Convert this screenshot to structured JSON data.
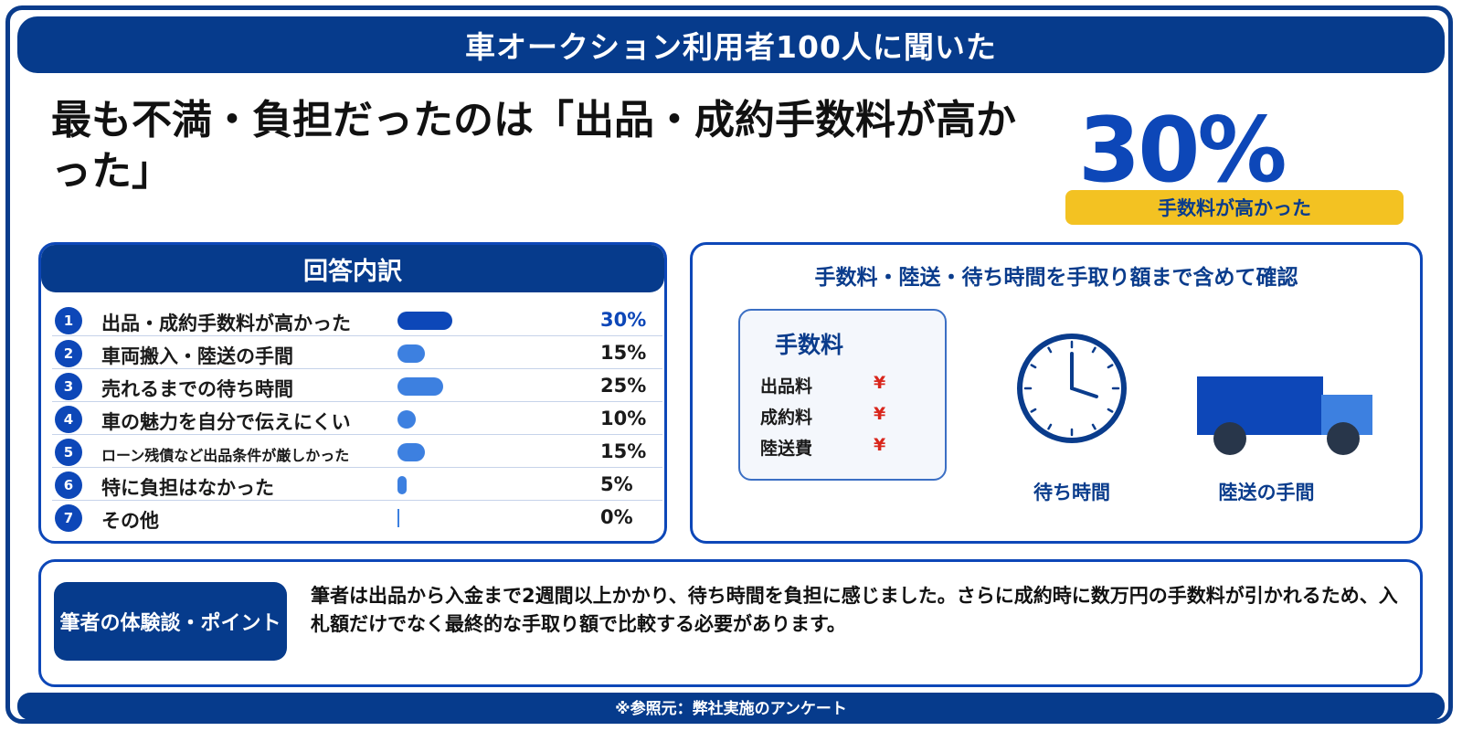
{
  "banner": "車オークション利用者100人に聞いた",
  "headline": "最も不満・負担だったのは「出品・成約手数料が高かった」",
  "hero": {
    "value": "30%",
    "label": "手数料が高かった"
  },
  "breakdown": {
    "title": "回答内訳"
  },
  "chart_data": {
    "type": "bar",
    "title": "回答内訳",
    "categories": [
      "出品・成約手数料が高かった",
      "車両搬入・陸送の手間",
      "売れるまでの待ち時間",
      "車の魅力を自分で伝えにくい",
      "ローン残債など出品条件が厳しかった",
      "特に負担はなかった",
      "その他"
    ],
    "numbers": [
      "1",
      "2",
      "3",
      "4",
      "5",
      "6",
      "7"
    ],
    "values": [
      30,
      15,
      25,
      10,
      15,
      5,
      0
    ],
    "value_labels": [
      "30%",
      "15%",
      "25%",
      "10%",
      "15%",
      "5%",
      "0%"
    ],
    "xlim": [
      0,
      100
    ],
    "orientation": "horizontal",
    "colors": {
      "highlight": "#0d47b8",
      "bar": "#3d80e0"
    }
  },
  "checklist": {
    "title": "手数料・陸送・待ち時間を手取り額まで含めて確認",
    "fee_title": "手数料",
    "fee_items": [
      {
        "label": "出品料",
        "symbol": "¥"
      },
      {
        "label": "成約料",
        "symbol": "¥"
      },
      {
        "label": "陸送費",
        "symbol": "¥"
      }
    ],
    "clock_caption": "待ち時間",
    "truck_caption": "陸送の手間"
  },
  "point": {
    "badge": "筆者の体験談・ポイント",
    "text": "筆者は出品から入金まで2週間以上かかり、待ち時間を負担に感じました。さらに成約時に数万円の手数料が引かれるため、入札額だけでなく最終的な手取り額で比較する必要があります。"
  },
  "footer": "※参照元：弊社実施のアンケート",
  "colors": {
    "navy": "#063b8c",
    "blue": "#0d47b8",
    "accent": "#f3c222",
    "yen": "#d9261c"
  }
}
